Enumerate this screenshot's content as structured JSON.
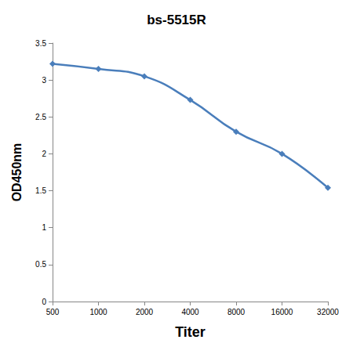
{
  "chart_data": {
    "type": "line",
    "title": "bs-5515R",
    "x_label": "Titer",
    "y_label": "OD450nm",
    "categories": [
      "500",
      "1000",
      "2000",
      "4000",
      "8000",
      "16000",
      "32000"
    ],
    "values": [
      3.22,
      3.15,
      3.05,
      2.73,
      2.3,
      2.0,
      1.54
    ],
    "color": "#4a7ebb",
    "marker": "diamond",
    "ylim": [
      0,
      3.5
    ],
    "yticks": [
      0,
      0.5,
      1,
      1.5,
      2,
      2.5,
      3,
      3.5
    ],
    "grid": false
  }
}
